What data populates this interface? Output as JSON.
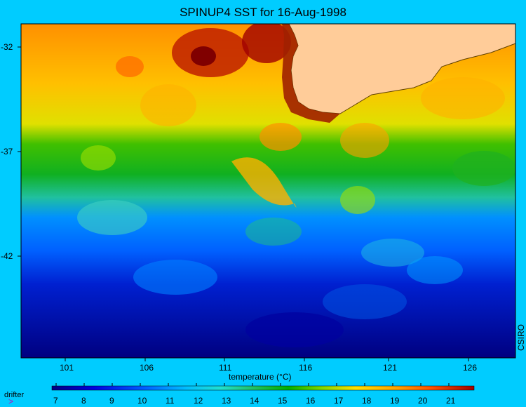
{
  "title": "SPINUP4 SST for 16-Aug-1998",
  "credit": "CSIRO",
  "legend": {
    "drifter_symbol": ">",
    "drifter_label": "drifter"
  },
  "colorbar": {
    "label": "temperature (°C)",
    "ticks": [
      "7",
      "8",
      "9",
      "10",
      "11",
      "12",
      "13",
      "14",
      "15",
      "16",
      "17",
      "18",
      "19",
      "20",
      "21"
    ],
    "colors": [
      "#000080",
      "#0000d0",
      "#0040ff",
      "#0090ff",
      "#00d0ff",
      "#20e0c0",
      "#20c060",
      "#00b000",
      "#60d000",
      "#c0e000",
      "#ffe000",
      "#ffb000",
      "#ff7000",
      "#e02000",
      "#a00000"
    ]
  },
  "map": {
    "lat_ticks": [
      "-32",
      "-37",
      "-42"
    ],
    "lon_ticks": [
      "101",
      "106",
      "111",
      "116",
      "121",
      "126"
    ],
    "land_color": "#ffcc99"
  }
}
